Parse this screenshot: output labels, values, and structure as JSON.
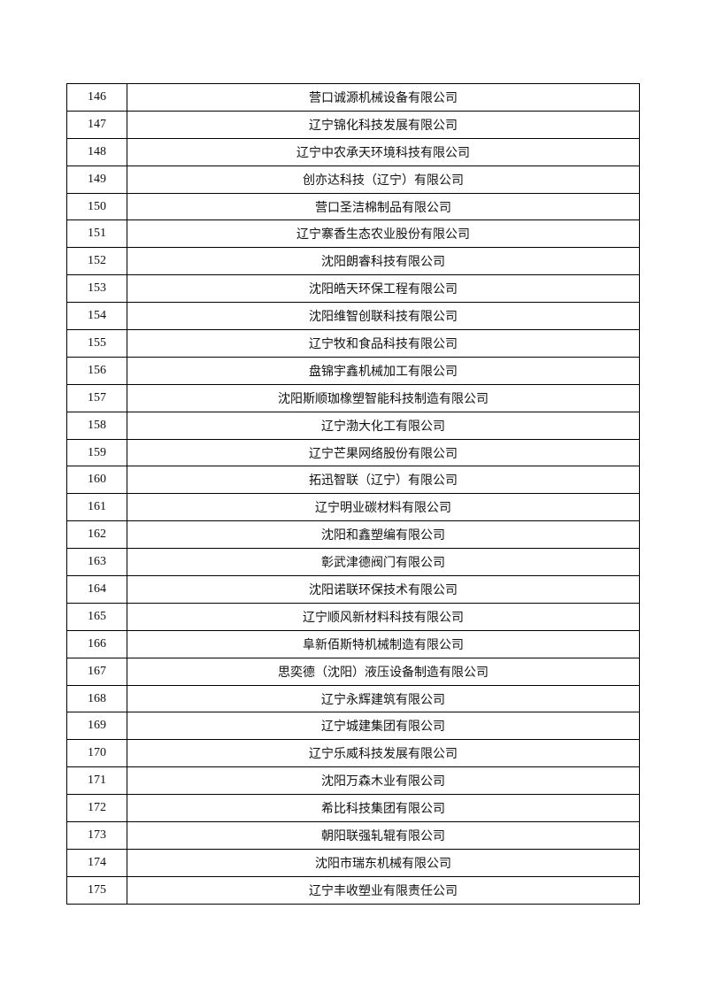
{
  "table": {
    "rows": [
      [
        "146",
        "营口诚源机械设备有限公司"
      ],
      [
        "147",
        "辽宁锦化科技发展有限公司"
      ],
      [
        "148",
        "辽宁中农承天环境科技有限公司"
      ],
      [
        "149",
        "创亦达科技（辽宁）有限公司"
      ],
      [
        "150",
        "营口圣洁棉制品有限公司"
      ],
      [
        "151",
        "辽宁寨香生态农业股份有限公司"
      ],
      [
        "152",
        "沈阳朗睿科技有限公司"
      ],
      [
        "153",
        "沈阳皓天环保工程有限公司"
      ],
      [
        "154",
        "沈阳维智创联科技有限公司"
      ],
      [
        "155",
        "辽宁牧和食品科技有限公司"
      ],
      [
        "156",
        "盘锦宇鑫机械加工有限公司"
      ],
      [
        "157",
        "沈阳斯顺珈橡塑智能科技制造有限公司"
      ],
      [
        "158",
        "辽宁渤大化工有限公司"
      ],
      [
        "159",
        "辽宁芒果网络股份有限公司"
      ],
      [
        "160",
        "拓迅智联（辽宁）有限公司"
      ],
      [
        "161",
        "辽宁明业碳材料有限公司"
      ],
      [
        "162",
        "沈阳和鑫塑编有限公司"
      ],
      [
        "163",
        "彰武津德阀门有限公司"
      ],
      [
        "164",
        "沈阳诺联环保技术有限公司"
      ],
      [
        "165",
        "辽宁顺风新材料科技有限公司"
      ],
      [
        "166",
        "阜新佰斯特机械制造有限公司"
      ],
      [
        "167",
        "思奕德（沈阳）液压设备制造有限公司"
      ],
      [
        "168",
        "辽宁永辉建筑有限公司"
      ],
      [
        "169",
        "辽宁城建集团有限公司"
      ],
      [
        "170",
        "辽宁乐威科技发展有限公司"
      ],
      [
        "171",
        "沈阳万森木业有限公司"
      ],
      [
        "172",
        "希比科技集团有限公司"
      ],
      [
        "173",
        "朝阳联强轧辊有限公司"
      ],
      [
        "174",
        "沈阳市瑞东机械有限公司"
      ],
      [
        "175",
        "辽宁丰收塑业有限责任公司"
      ]
    ]
  }
}
